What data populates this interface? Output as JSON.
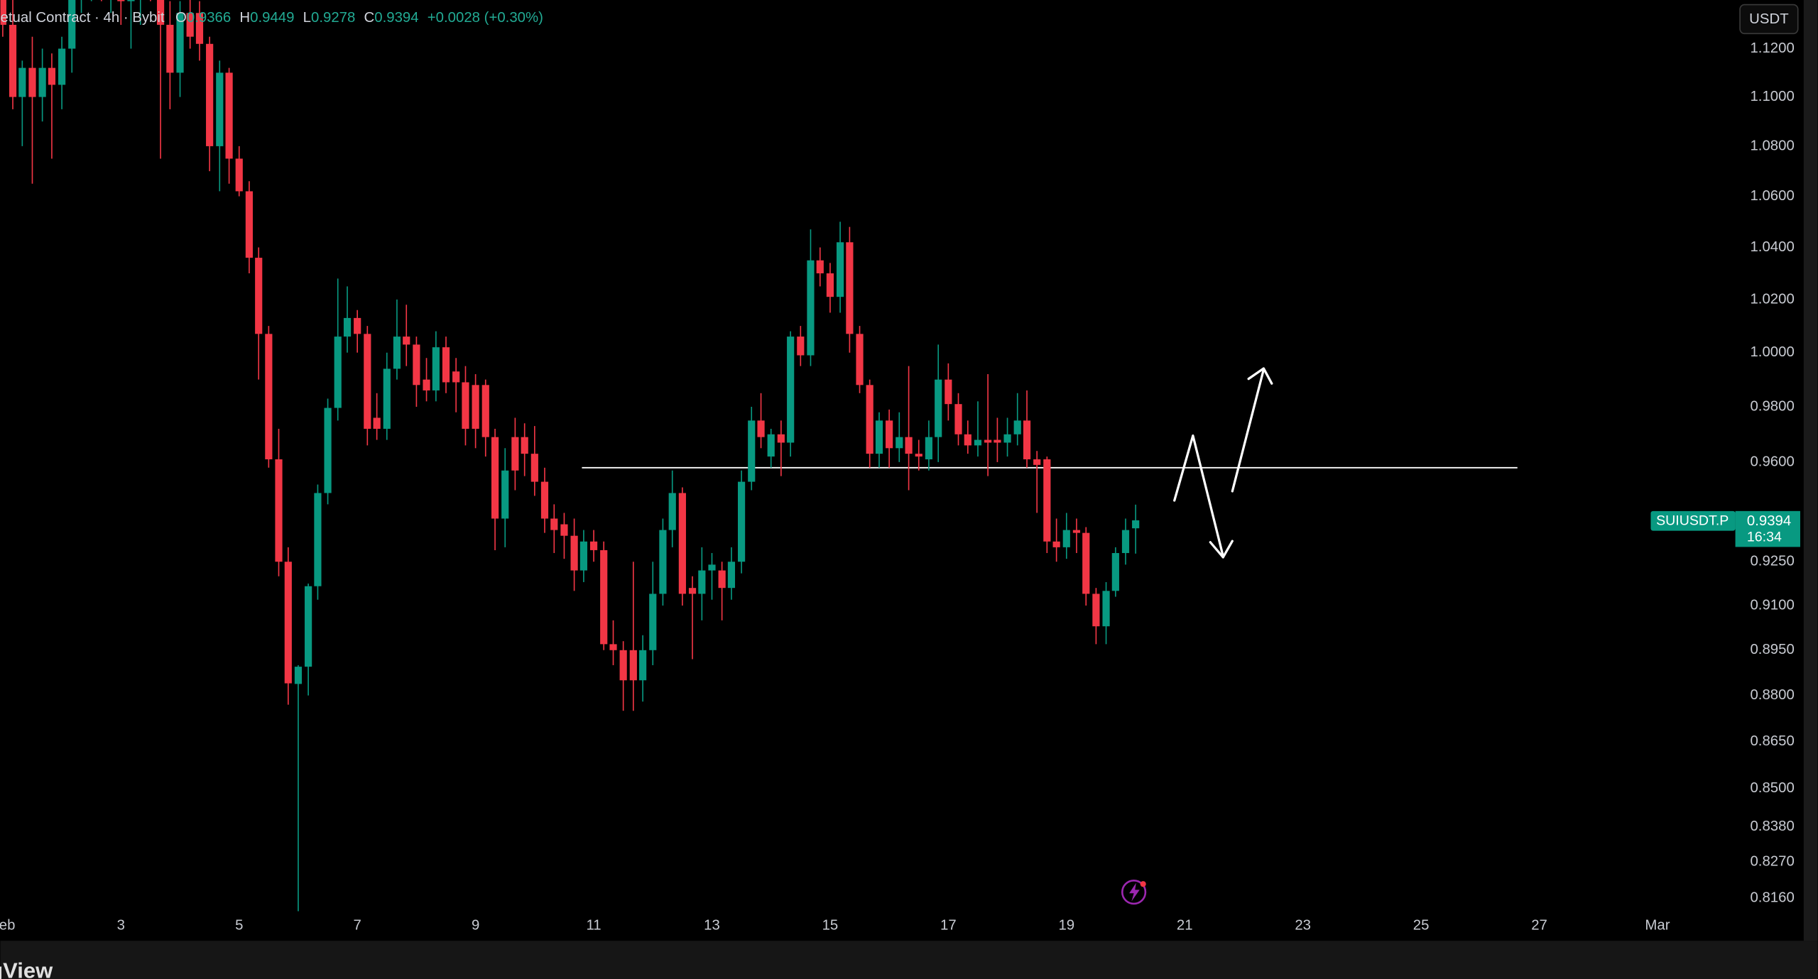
{
  "chart_data": {
    "type": "candlestick",
    "title": "etual Contract · 4h · Bybit",
    "log_scale": true,
    "legend_labels": {
      "open": "O",
      "high": "H",
      "low": "L",
      "close": "C"
    },
    "change": "+0.0028 (+0.30%)",
    "currency": "USDT",
    "symbol": "SUIUSDT.P",
    "countdown": "16:34",
    "up_color": "#089981",
    "down_color": "#f23645",
    "x": [
      1,
      1.17,
      1.33,
      1.5,
      1.67,
      1.83,
      2,
      2.17,
      2.33,
      2.5,
      2.67,
      2.83,
      3,
      3.17,
      3.33,
      3.5,
      3.67,
      3.83,
      4,
      4.17,
      4.33,
      4.5,
      4.67,
      4.83,
      5,
      5.17,
      5.33,
      5.5,
      5.67,
      5.83,
      6,
      6.17,
      6.33,
      6.5,
      6.67,
      6.83,
      7,
      7.17,
      7.33,
      7.5,
      7.67,
      7.83,
      8,
      8.17,
      8.33,
      8.5,
      8.67,
      8.83,
      9,
      9.17,
      9.33,
      9.5,
      9.67,
      9.83,
      10,
      10.17,
      10.33,
      10.5,
      10.67,
      10.83,
      11,
      11.17,
      11.33,
      11.5,
      11.67,
      11.83,
      12,
      12.17,
      12.33,
      12.5,
      12.67,
      12.83,
      13,
      13.17,
      13.33,
      13.5,
      13.67,
      13.83,
      14,
      14.17,
      14.33,
      14.5,
      14.67,
      14.83,
      15,
      15.17,
      15.33,
      15.5,
      15.67,
      15.83,
      16,
      16.17,
      16.33,
      16.5,
      16.67,
      16.83,
      17,
      17.17,
      17.33,
      17.5,
      17.67,
      17.83,
      18,
      18.17,
      18.33,
      18.5,
      18.67,
      18.83,
      19,
      19.17,
      19.33,
      19.5,
      19.67,
      19.83,
      20,
      20.17
    ],
    "open": [
      1.15,
      1.13,
      1.1,
      1.112,
      1.1,
      1.112,
      1.105,
      1.12,
      1.145,
      1.15,
      1.155,
      1.148,
      1.15,
      1.14,
      1.145,
      1.15,
      1.142,
      1.13,
      1.11,
      1.135,
      1.135,
      1.122,
      1.08,
      1.11,
      1.075,
      1.062,
      1.036,
      1.007,
      0.961,
      0.925,
      0.8838,
      0.8895,
      0.9166,
      0.949,
      0.9796,
      1.006,
      1.013,
      1.007,
      0.976,
      0.972,
      0.994,
      1.006,
      1.003,
      0.99,
      0.986,
      1.002,
      0.993,
      0.989,
      0.988,
      0.988,
      0.969,
      0.94,
      0.969,
      0.969,
      0.963,
      0.953,
      0.94,
      0.938,
      0.934,
      0.922,
      0.932,
      0.929,
      0.897,
      0.895,
      0.895,
      0.885,
      0.895,
      0.914,
      0.936,
      0.949,
      0.916,
      0.914,
      0.922,
      0.922,
      0.916,
      0.925,
      0.953,
      0.975,
      0.962,
      0.97,
      0.967,
      1.006,
      0.999,
      1.035,
      1.03,
      1.021,
      1.042,
      1.007,
      0.988,
      0.963,
      0.975,
      0.965,
      0.969,
      0.963,
      0.961,
      0.969,
      0.99,
      0.981,
      0.97,
      0.966,
      0.968,
      0.968,
      0.967,
      0.97,
      0.975,
      0.961,
      0.961,
      0.932,
      0.93,
      0.936,
      0.935,
      0.914,
      0.903,
      0.915,
      0.928,
      0.9366
    ],
    "high": [
      1.16,
      1.15,
      1.115,
      1.125,
      1.12,
      1.118,
      1.125,
      1.15,
      1.16,
      1.165,
      1.165,
      1.16,
      1.16,
      1.15,
      1.155,
      1.16,
      1.15,
      1.14,
      1.14,
      1.145,
      1.14,
      1.125,
      1.115,
      1.112,
      1.08,
      1.066,
      1.04,
      1.01,
      0.972,
      0.93,
      0.89,
      0.9175,
      0.952,
      0.983,
      1.028,
      1.025,
      1.016,
      1.01,
      0.985,
      1.0,
      1.02,
      1.018,
      1.006,
      0.998,
      1.008,
      1.006,
      0.998,
      0.995,
      0.992,
      0.99,
      0.972,
      0.965,
      0.976,
      0.974,
      0.973,
      0.958,
      0.945,
      0.942,
      0.94,
      0.936,
      0.936,
      0.932,
      0.905,
      0.898,
      0.925,
      0.9,
      0.925,
      0.94,
      0.957,
      0.951,
      0.92,
      0.93,
      0.928,
      0.925,
      0.93,
      0.957,
      0.98,
      0.985,
      0.972,
      0.975,
      1.008,
      1.01,
      1.047,
      1.04,
      1.034,
      1.05,
      1.048,
      1.01,
      0.99,
      0.978,
      0.979,
      0.978,
      0.995,
      0.968,
      0.975,
      1.003,
      0.996,
      0.985,
      0.975,
      0.982,
      0.992,
      0.976,
      0.976,
      0.985,
      0.986,
      0.964,
      0.962,
      0.94,
      0.942,
      0.94,
      0.937,
      0.916,
      0.918,
      0.93,
      0.94,
      0.9449
    ],
    "low": [
      1.125,
      1.095,
      1.08,
      1.065,
      1.09,
      1.075,
      1.095,
      1.11,
      1.135,
      1.14,
      1.14,
      1.135,
      1.13,
      1.12,
      1.13,
      1.14,
      1.075,
      1.095,
      1.1,
      1.12,
      1.115,
      1.07,
      1.062,
      1.065,
      1.06,
      1.03,
      0.99,
      0.958,
      0.92,
      0.877,
      0.812,
      0.88,
      0.912,
      0.945,
      0.975,
      1.0,
      1.0,
      0.966,
      0.968,
      0.968,
      0.99,
      0.995,
      0.98,
      0.982,
      0.982,
      0.985,
      0.978,
      0.966,
      0.965,
      0.962,
      0.929,
      0.93,
      0.95,
      0.955,
      0.948,
      0.935,
      0.928,
      0.926,
      0.915,
      0.918,
      0.925,
      0.895,
      0.89,
      0.875,
      0.875,
      0.878,
      0.89,
      0.91,
      0.93,
      0.91,
      0.892,
      0.905,
      0.912,
      0.905,
      0.912,
      0.921,
      0.95,
      0.965,
      0.958,
      0.955,
      0.962,
      0.995,
      0.995,
      1.025,
      1.015,
      1.015,
      1.0,
      0.985,
      0.958,
      0.958,
      0.958,
      0.96,
      0.95,
      0.957,
      0.957,
      0.96,
      0.975,
      0.966,
      0.963,
      0.962,
      0.955,
      0.96,
      0.962,
      0.966,
      0.958,
      0.942,
      0.928,
      0.925,
      0.926,
      0.928,
      0.91,
      0.897,
      0.897,
      0.913,
      0.924,
      0.9278
    ],
    "close": [
      1.13,
      1.1,
      1.112,
      1.1,
      1.112,
      1.105,
      1.12,
      1.145,
      1.15,
      1.155,
      1.148,
      1.15,
      1.14,
      1.145,
      1.15,
      1.142,
      1.13,
      1.11,
      1.135,
      1.125,
      1.122,
      1.08,
      1.11,
      1.075,
      1.062,
      1.036,
      1.007,
      0.961,
      0.925,
      0.884,
      0.8895,
      0.9166,
      0.949,
      0.9796,
      1.006,
      1.013,
      1.007,
      0.972,
      0.972,
      0.994,
      1.006,
      1.003,
      0.988,
      0.986,
      1.002,
      0.989,
      0.989,
      0.972,
      0.972,
      0.969,
      0.94,
      0.957,
      0.957,
      0.963,
      0.953,
      0.94,
      0.936,
      0.934,
      0.922,
      0.932,
      0.929,
      0.897,
      0.895,
      0.885,
      0.885,
      0.895,
      0.914,
      0.936,
      0.949,
      0.914,
      0.914,
      0.922,
      0.924,
      0.916,
      0.925,
      0.953,
      0.975,
      0.969,
      0.97,
      0.967,
      1.006,
      0.999,
      1.035,
      1.03,
      1.021,
      1.042,
      1.007,
      0.988,
      0.963,
      0.975,
      0.965,
      0.969,
      0.963,
      0.962,
      0.969,
      0.99,
      0.981,
      0.97,
      0.966,
      0.968,
      0.967,
      0.967,
      0.97,
      0.975,
      0.961,
      0.959,
      0.932,
      0.93,
      0.936,
      0.935,
      0.914,
      0.903,
      0.915,
      0.928,
      0.936,
      0.9394
    ],
    "levels": [
      {
        "value": 0.958,
        "start": 10.8,
        "end": 26.63
      }
    ],
    "xlim": [
      0.96,
      30.18
    ],
    "xticks": [
      {
        "value": 1,
        "label": "Feb"
      },
      3,
      5,
      7,
      9,
      11,
      13,
      15,
      17,
      19,
      21,
      23,
      25,
      27,
      {
        "value": 29,
        "label": "Mar"
      }
    ],
    "ylim": [
      0.8031,
      1.1405
    ],
    "yticks": [
      {
        "value": 1.12,
        "label": "1.1200"
      },
      {
        "value": 1.1,
        "label": "1.1000"
      },
      {
        "value": 1.08,
        "label": "1.0800"
      },
      {
        "value": 1.06,
        "label": "1.0600"
      },
      {
        "value": 1.04,
        "label": "1.0400"
      },
      {
        "value": 1.02,
        "label": "1.0200"
      },
      {
        "value": 1.0,
        "label": "1.0000"
      },
      {
        "value": 0.98,
        "label": "0.9800"
      },
      {
        "value": 0.96,
        "label": "0.9600"
      },
      {
        "value": 0.925,
        "label": "0.9250"
      },
      {
        "value": 0.91,
        "label": "0.9100"
      },
      {
        "value": 0.895,
        "label": "0.8950"
      },
      {
        "value": 0.88,
        "label": "0.8800"
      },
      {
        "value": 0.865,
        "label": "0.8650"
      },
      {
        "value": 0.85,
        "label": "0.8500"
      },
      {
        "value": 0.838,
        "label": "0.8380"
      },
      {
        "value": 0.827,
        "label": "0.8270"
      },
      {
        "value": 0.816,
        "label": "0.8160"
      }
    ]
  },
  "footer": {
    "logo": "ngView"
  }
}
